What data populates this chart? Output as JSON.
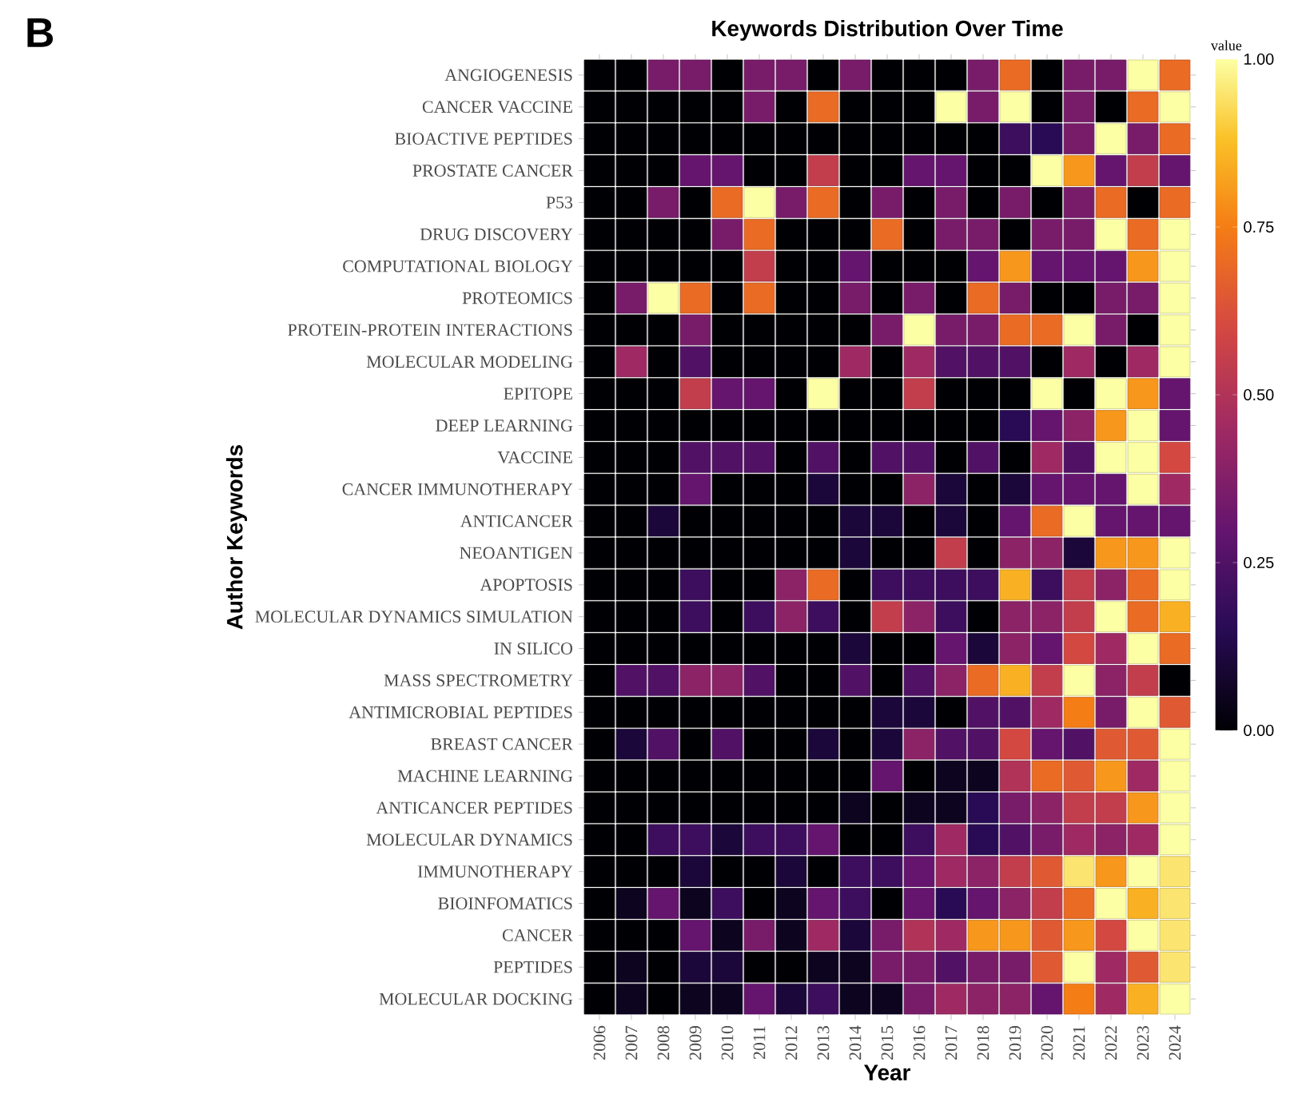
{
  "chart_data": {
    "type": "heatmap",
    "title": "Keywords Distribution Over Time",
    "xlabel": "Year",
    "ylabel": "Author Keywords",
    "clabel": "value",
    "annotations": [
      "B"
    ],
    "categories": [
      "2006",
      "2007",
      "2008",
      "2009",
      "2010",
      "2011",
      "2012",
      "2013",
      "2014",
      "2015",
      "2016",
      "2017",
      "2018",
      "2019",
      "2020",
      "2021",
      "2022",
      "2023",
      "2024"
    ],
    "y_categories": [
      "ANGIOGENESIS",
      "CANCER VACCINE",
      "BIOACTIVE PEPTIDES",
      "PROSTATE CANCER",
      "P53",
      "DRUG DISCOVERY",
      "COMPUTATIONAL BIOLOGY",
      "PROTEOMICS",
      "PROTEIN-PROTEIN INTERACTIONS",
      "MOLECULAR MODELING",
      "EPITOPE",
      "DEEP LEARNING",
      "VACCINE",
      "CANCER IMMUNOTHERAPY",
      "ANTICANCER",
      "NEOANTIGEN",
      "APOPTOSIS",
      "MOLECULAR DYNAMICS SIMULATION",
      "IN SILICO",
      "MASS SPECTROMETRY",
      "ANTIMICROBIAL PEPTIDES",
      "BREAST CANCER",
      "MACHINE LEARNING",
      "ANTICANCER PEPTIDES",
      "MOLECULAR DYNAMICS",
      "IMMUNOTHERAPY",
      "BIOINFOMATICS",
      "CANCER",
      "PEPTIDES",
      "MOLECULAR DOCKING"
    ],
    "cells": [
      [
        0,
        0,
        0.35,
        0.35,
        0,
        0.35,
        0.35,
        0,
        0.35,
        0,
        0,
        0,
        0.35,
        0.7,
        0,
        0.35,
        0.35,
        1,
        0.7
      ],
      [
        0,
        0,
        0,
        0,
        0,
        0.35,
        0,
        0.7,
        0,
        0,
        0,
        1,
        0.35,
        1,
        0,
        0.35,
        0,
        0.7,
        1
      ],
      [
        0,
        0,
        0,
        0,
        0,
        0,
        0,
        0,
        0,
        0,
        0,
        0,
        0,
        0.2,
        0.15,
        0.35,
        1,
        0.35,
        0.7
      ],
      [
        0,
        0,
        0,
        0.3,
        0.3,
        0,
        0,
        0.55,
        0,
        0,
        0.3,
        0.3,
        0,
        0,
        1,
        0.8,
        0.3,
        0.55,
        0.3
      ],
      [
        0,
        0,
        0.35,
        0,
        0.7,
        1,
        0.35,
        0.7,
        0,
        0.35,
        0,
        0.35,
        0,
        0.35,
        0,
        0.35,
        0.7,
        0,
        0.7
      ],
      [
        0,
        0,
        0,
        0,
        0.35,
        0.7,
        0,
        0,
        0,
        0.7,
        0,
        0.35,
        0.35,
        0,
        0.35,
        0.35,
        1,
        0.7,
        1
      ],
      [
        0,
        0,
        0,
        0,
        0,
        0.55,
        0,
        0,
        0.3,
        0,
        0,
        0,
        0.3,
        0.8,
        0.3,
        0.3,
        0.3,
        0.8,
        1
      ],
      [
        0,
        0.35,
        1,
        0.7,
        0,
        0.7,
        0,
        0,
        0.35,
        0,
        0.35,
        0,
        0.7,
        0.35,
        0,
        0,
        0.35,
        0.35,
        1
      ],
      [
        0,
        0,
        0,
        0.35,
        0,
        0,
        0,
        0,
        0,
        0.35,
        1,
        0.35,
        0.35,
        0.7,
        0.7,
        1,
        0.35,
        0,
        1
      ],
      [
        0,
        0.45,
        0,
        0.25,
        0,
        0,
        0,
        0,
        0.45,
        0,
        0.45,
        0.25,
        0.25,
        0.25,
        0,
        0.45,
        0,
        0.45,
        1
      ],
      [
        0,
        0,
        0,
        0.55,
        0.3,
        0.3,
        0,
        1,
        0,
        0,
        0.55,
        0,
        0,
        0,
        1,
        0,
        1,
        0.8,
        0.3
      ],
      [
        0,
        0,
        0,
        0,
        0,
        0,
        0,
        0,
        0,
        0,
        0,
        0,
        0,
        0.15,
        0.3,
        0.4,
        0.8,
        1,
        0.3
      ],
      [
        0,
        0,
        0,
        0.25,
        0.25,
        0.25,
        0,
        0.25,
        0,
        0.25,
        0.25,
        0,
        0.25,
        0,
        0.45,
        0.25,
        1,
        1,
        0.6
      ],
      [
        0,
        0,
        0,
        0.3,
        0,
        0,
        0,
        0.1,
        0,
        0,
        0.4,
        0.1,
        0,
        0.1,
        0.3,
        0.3,
        0.3,
        1,
        0.45
      ],
      [
        0,
        0,
        0.1,
        0,
        0,
        0,
        0,
        0,
        0.1,
        0.1,
        0,
        0.1,
        0,
        0.3,
        0.7,
        1,
        0.3,
        0.3,
        0.3
      ],
      [
        0,
        0,
        0,
        0,
        0,
        0,
        0,
        0,
        0.1,
        0,
        0,
        0.55,
        0,
        0.4,
        0.4,
        0.1,
        0.8,
        0.8,
        1
      ],
      [
        0,
        0,
        0,
        0.2,
        0,
        0,
        0.4,
        0.7,
        0,
        0.2,
        0.2,
        0.2,
        0.2,
        0.85,
        0.2,
        0.55,
        0.4,
        0.7,
        1
      ],
      [
        0,
        0,
        0,
        0.2,
        0,
        0.2,
        0.4,
        0.2,
        0,
        0.55,
        0.4,
        0.2,
        0,
        0.4,
        0.4,
        0.55,
        1,
        0.7,
        0.85
      ],
      [
        0,
        0,
        0,
        0,
        0,
        0,
        0,
        0,
        0.1,
        0,
        0,
        0.3,
        0.1,
        0.4,
        0.3,
        0.6,
        0.45,
        1,
        0.7
      ],
      [
        0,
        0.25,
        0.25,
        0.4,
        0.4,
        0.25,
        0,
        0,
        0.25,
        0,
        0.25,
        0.4,
        0.7,
        0.85,
        0.55,
        1,
        0.4,
        0.55,
        0
      ],
      [
        0,
        0,
        0,
        0,
        0,
        0,
        0,
        0,
        0,
        0.1,
        0.1,
        0,
        0.25,
        0.25,
        0.45,
        0.75,
        0.35,
        1,
        0.65
      ],
      [
        0,
        0.1,
        0.25,
        0,
        0.25,
        0,
        0,
        0.1,
        0,
        0.1,
        0.4,
        0.25,
        0.25,
        0.6,
        0.3,
        0.25,
        0.65,
        0.65,
        1
      ],
      [
        0,
        0,
        0,
        0,
        0,
        0,
        0,
        0,
        0,
        0.3,
        0,
        0.05,
        0.05,
        0.5,
        0.7,
        0.65,
        0.8,
        0.45,
        1
      ],
      [
        0,
        0,
        0,
        0,
        0,
        0,
        0,
        0,
        0.05,
        0,
        0.05,
        0.05,
        0.15,
        0.35,
        0.4,
        0.55,
        0.55,
        0.8,
        1
      ],
      [
        0,
        0,
        0.2,
        0.2,
        0.1,
        0.2,
        0.2,
        0.3,
        0,
        0,
        0.2,
        0.45,
        0.15,
        0.25,
        0.35,
        0.45,
        0.4,
        0.45,
        1
      ],
      [
        0,
        0,
        0,
        0.1,
        0,
        0,
        0.1,
        0,
        0.2,
        0.2,
        0.3,
        0.45,
        0.4,
        0.55,
        0.65,
        0.95,
        0.8,
        1,
        0.95
      ],
      [
        0,
        0.05,
        0.3,
        0.05,
        0.2,
        0,
        0.05,
        0.3,
        0.2,
        0,
        0.3,
        0.15,
        0.3,
        0.4,
        0.55,
        0.7,
        1,
        0.85,
        0.95
      ],
      [
        0,
        0,
        0,
        0.3,
        0.05,
        0.35,
        0.05,
        0.45,
        0.1,
        0.35,
        0.5,
        0.45,
        0.8,
        0.8,
        0.65,
        0.8,
        0.6,
        1,
        0.95
      ],
      [
        0,
        0.05,
        0,
        0.1,
        0.1,
        0,
        0,
        0.05,
        0.05,
        0.35,
        0.35,
        0.25,
        0.35,
        0.35,
        0.65,
        1,
        0.45,
        0.65,
        0.95
      ],
      [
        0,
        0.05,
        0,
        0.05,
        0.05,
        0.3,
        0.1,
        0.2,
        0.05,
        0.05,
        0.35,
        0.45,
        0.4,
        0.4,
        0.3,
        0.75,
        0.45,
        0.85,
        1
      ]
    ],
    "clim": [
      0,
      1
    ],
    "cticks": [
      {
        "value": 0,
        "label": "0.00"
      },
      {
        "value": 0.25,
        "label": "0.25"
      },
      {
        "value": 0.5,
        "label": "0.50"
      },
      {
        "value": 0.75,
        "label": "0.75"
      },
      {
        "value": 1,
        "label": "1.00"
      }
    ]
  }
}
